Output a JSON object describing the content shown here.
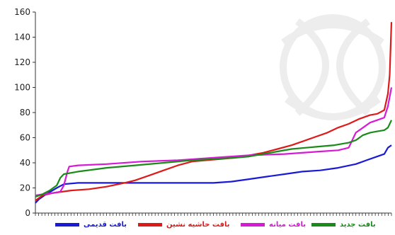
{
  "chart_data": {
    "type": "line",
    "title": "",
    "xlabel": "",
    "ylabel": "",
    "ylim": [
      0,
      160
    ],
    "yticks": [
      0,
      20,
      40,
      60,
      80,
      100,
      120,
      140,
      160
    ],
    "x_ticks_unlabeled": true,
    "grid": false,
    "legend_position": "bottom",
    "series": [
      {
        "name": "بافت قدیمی",
        "color": "#1a1ad6",
        "points": [
          [
            0,
            8
          ],
          [
            1,
            11
          ],
          [
            3,
            15
          ],
          [
            6,
            20
          ],
          [
            8,
            23
          ],
          [
            12,
            24
          ],
          [
            20,
            24
          ],
          [
            30,
            24
          ],
          [
            40,
            24
          ],
          [
            50,
            24
          ],
          [
            55,
            25
          ],
          [
            60,
            27
          ],
          [
            65,
            29
          ],
          [
            70,
            31
          ],
          [
            75,
            33
          ],
          [
            80,
            34
          ],
          [
            85,
            36
          ],
          [
            90,
            39
          ],
          [
            93,
            42
          ],
          [
            96,
            45
          ],
          [
            98,
            47
          ],
          [
            99,
            52
          ],
          [
            100,
            54
          ]
        ]
      },
      {
        "name": "بافت حاشیه نشین",
        "color": "#dd1a1a",
        "points": [
          [
            0,
            10
          ],
          [
            2,
            14
          ],
          [
            5,
            16
          ],
          [
            10,
            18
          ],
          [
            15,
            19
          ],
          [
            20,
            21
          ],
          [
            25,
            24
          ],
          [
            28,
            26
          ],
          [
            32,
            30
          ],
          [
            36,
            34
          ],
          [
            40,
            38
          ],
          [
            44,
            41
          ],
          [
            48,
            42
          ],
          [
            52,
            43
          ],
          [
            56,
            44
          ],
          [
            60,
            46
          ],
          [
            64,
            48
          ],
          [
            68,
            51
          ],
          [
            72,
            54
          ],
          [
            75,
            57
          ],
          [
            78,
            60
          ],
          [
            82,
            64
          ],
          [
            85,
            68
          ],
          [
            88,
            71
          ],
          [
            91,
            75
          ],
          [
            94,
            78
          ],
          [
            96,
            79
          ],
          [
            98,
            82
          ],
          [
            99,
            95
          ],
          [
            99.5,
            110
          ],
          [
            100,
            152
          ]
        ]
      },
      {
        "name": "بافت میانه",
        "color": "#d61ad6",
        "points": [
          [
            0,
            14
          ],
          [
            2,
            15
          ],
          [
            5,
            16
          ],
          [
            7,
            17
          ],
          [
            8,
            22
          ],
          [
            9,
            33
          ],
          [
            9.5,
            37
          ],
          [
            12,
            38
          ],
          [
            20,
            39
          ],
          [
            30,
            41
          ],
          [
            40,
            42
          ],
          [
            50,
            44
          ],
          [
            60,
            46
          ],
          [
            70,
            47
          ],
          [
            80,
            49
          ],
          [
            85,
            50
          ],
          [
            88,
            52
          ],
          [
            90,
            64
          ],
          [
            92,
            68
          ],
          [
            94,
            72
          ],
          [
            96,
            74
          ],
          [
            98,
            76
          ],
          [
            99,
            85
          ],
          [
            100,
            100
          ]
        ]
      },
      {
        "name": "بافت جدید",
        "color": "#1a8a1a",
        "points": [
          [
            0,
            13
          ],
          [
            2,
            15
          ],
          [
            4,
            18
          ],
          [
            6,
            22
          ],
          [
            7,
            28
          ],
          [
            8,
            31
          ],
          [
            12,
            33
          ],
          [
            20,
            36
          ],
          [
            28,
            38
          ],
          [
            36,
            40
          ],
          [
            44,
            42
          ],
          [
            50,
            43
          ],
          [
            56,
            44
          ],
          [
            60,
            45
          ],
          [
            64,
            47
          ],
          [
            68,
            49
          ],
          [
            72,
            51
          ],
          [
            76,
            52
          ],
          [
            80,
            53
          ],
          [
            84,
            54
          ],
          [
            88,
            56
          ],
          [
            90,
            58
          ],
          [
            92,
            62
          ],
          [
            94,
            64
          ],
          [
            96,
            65
          ],
          [
            98,
            66
          ],
          [
            99,
            68
          ],
          [
            100,
            74
          ]
        ]
      }
    ]
  }
}
